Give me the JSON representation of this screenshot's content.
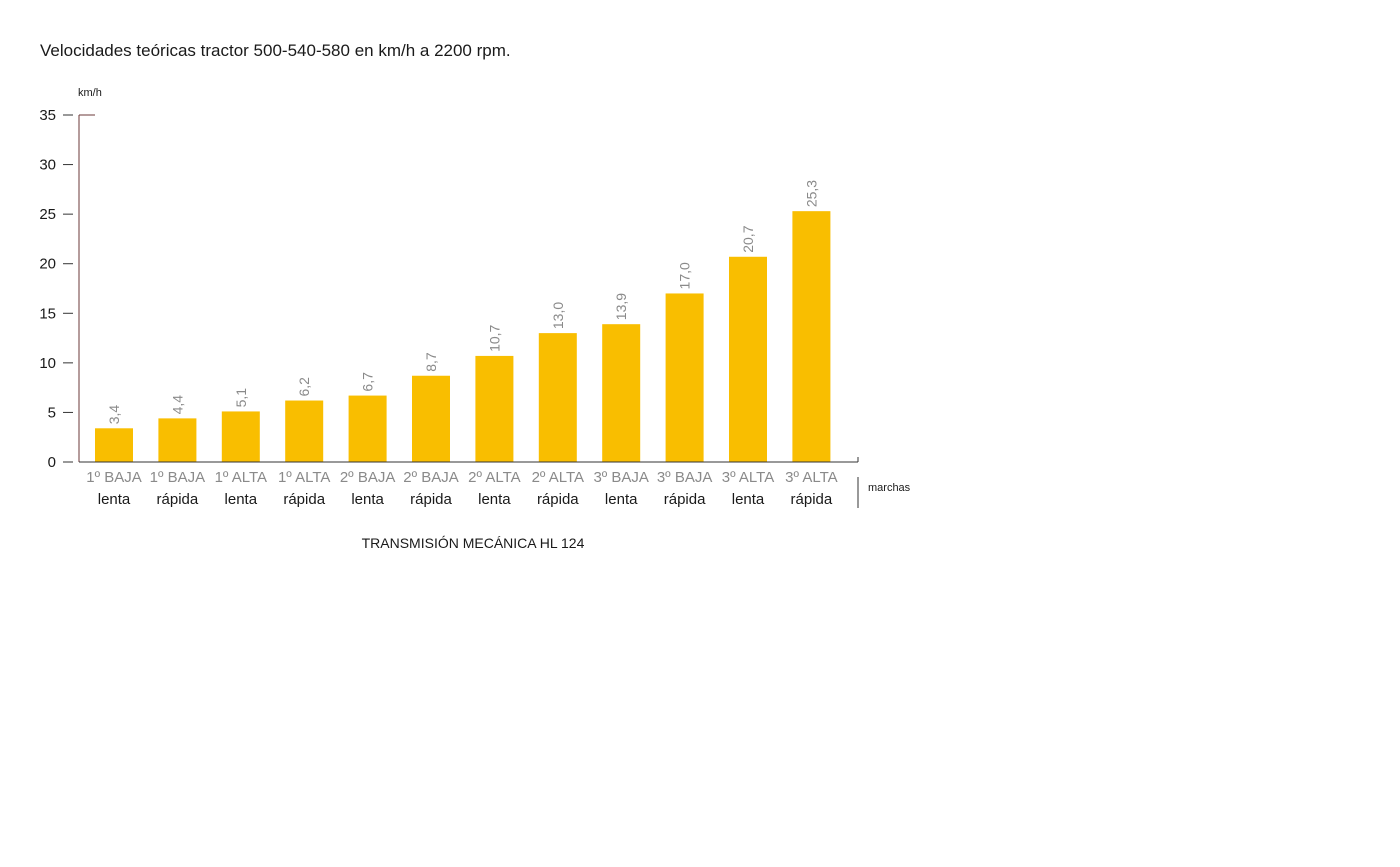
{
  "chart_data": {
    "type": "bar",
    "title": "Velocidades teóricas tractor 500-540-580 en km/h a 2200 rpm.",
    "ylabel": "km/h",
    "xlabel": "marchas",
    "caption": "TRANSMISIÓN MECÁNICA HL 124",
    "ylim": [
      0,
      35
    ],
    "yticks": [
      "0",
      "5",
      "10",
      "15",
      "20",
      "25",
      "30",
      "35"
    ],
    "categories": [
      {
        "gear": "1º BAJA",
        "speed": "lenta"
      },
      {
        "gear": "1º BAJA",
        "speed": "rápida"
      },
      {
        "gear": "1º ALTA",
        "speed": "lenta"
      },
      {
        "gear": "1º ALTA",
        "speed": "rápida"
      },
      {
        "gear": "2º BAJA",
        "speed": "lenta"
      },
      {
        "gear": "2º BAJA",
        "speed": "rápida"
      },
      {
        "gear": "2º ALTA",
        "speed": "lenta"
      },
      {
        "gear": "2º ALTA",
        "speed": "rápida"
      },
      {
        "gear": "3º BAJA",
        "speed": "lenta"
      },
      {
        "gear": "3º BAJA",
        "speed": "rápida"
      },
      {
        "gear": "3º ALTA",
        "speed": "lenta"
      },
      {
        "gear": "3º ALTA",
        "speed": "rápida"
      }
    ],
    "values": [
      3.4,
      4.4,
      5.1,
      6.2,
      6.7,
      8.7,
      10.7,
      13.0,
      13.9,
      17.0,
      20.7,
      25.3
    ],
    "value_labels": [
      "3,4",
      "4,4",
      "5,1",
      "6,2",
      "6,7",
      "8,7",
      "10,7",
      "13,0",
      "13,9",
      "17,0",
      "20,7",
      "25,3"
    ],
    "bar_color": "#F9BE00",
    "axis_color": "#6b3a3a",
    "grid": false,
    "legend": "none"
  }
}
